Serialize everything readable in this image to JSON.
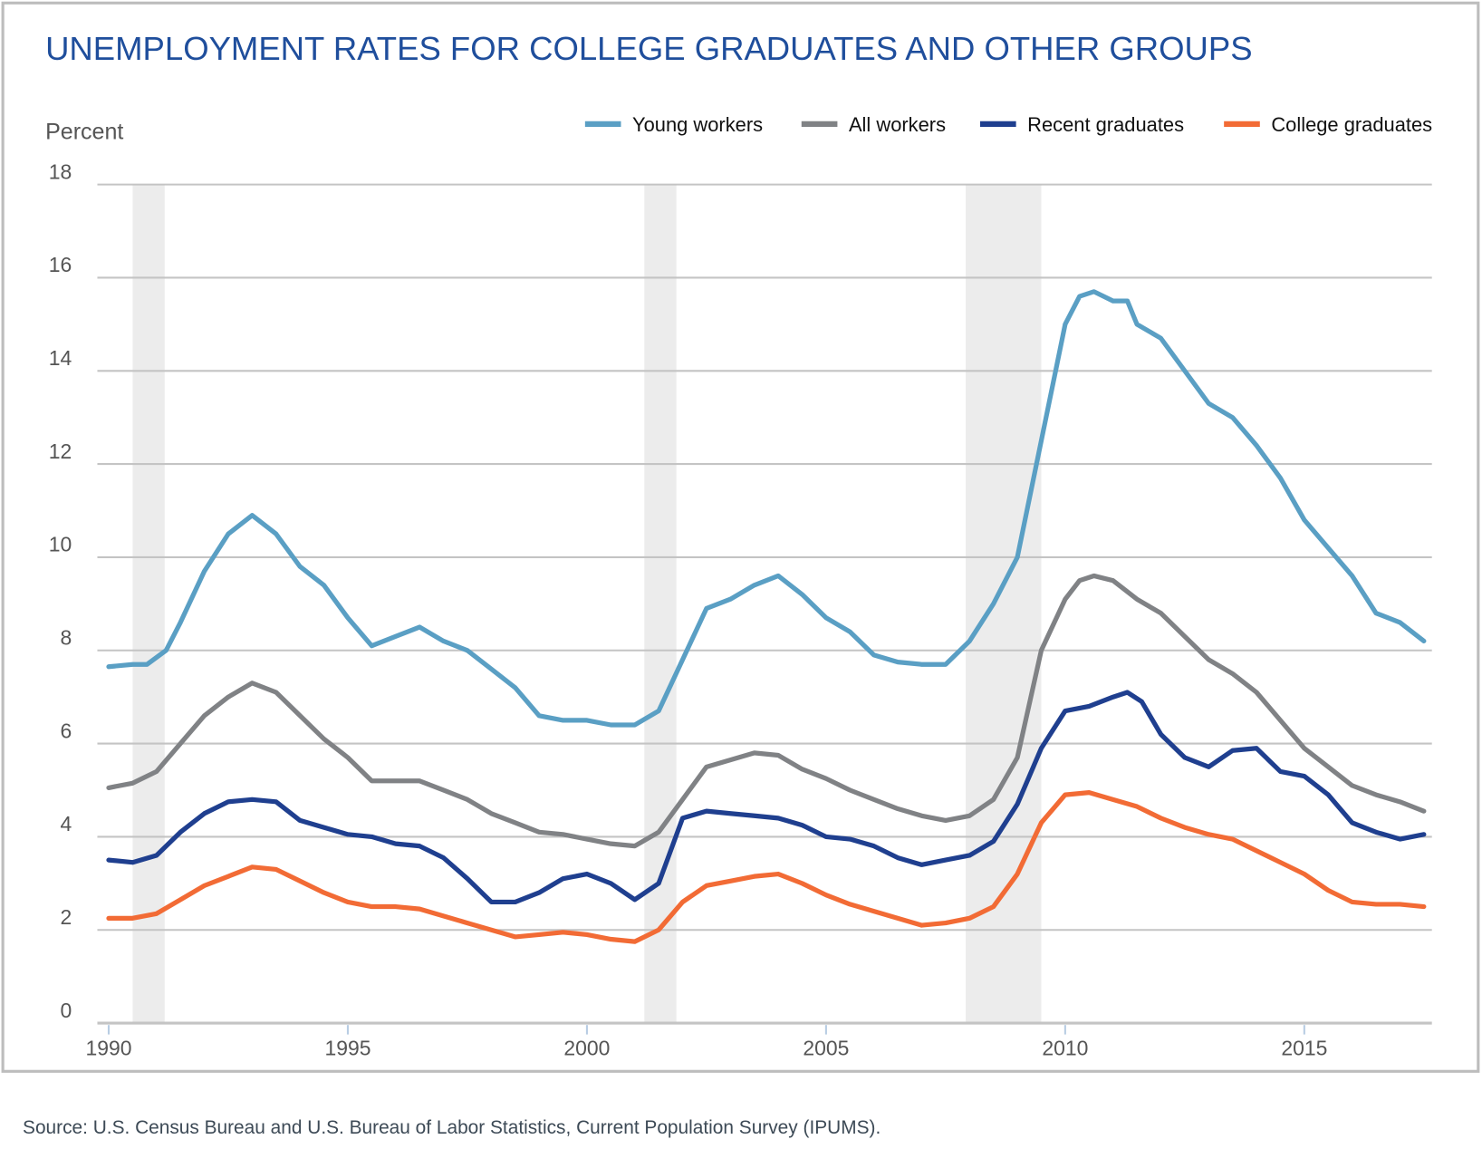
{
  "chart_data": {
    "type": "line",
    "title": "UNEMPLOYMENT RATES FOR COLLEGE GRADUATES AND OTHER GROUPS",
    "ylabel": "Percent",
    "xlabel": "",
    "ylim": [
      0,
      18
    ],
    "xlim": [
      1990,
      2017.5
    ],
    "yticks": [
      "0",
      "2",
      "4",
      "6",
      "8",
      "10",
      "12",
      "14",
      "16",
      "18"
    ],
    "xticks": [
      "1990",
      "1995",
      "2000",
      "2005",
      "2010",
      "2015"
    ],
    "grid": true,
    "legend_position": "top-right",
    "recessions": [
      [
        1990.5,
        1991.17
      ],
      [
        2001.2,
        2001.87
      ],
      [
        2007.92,
        2009.5
      ]
    ],
    "series": [
      {
        "name": "Young workers",
        "color": "#5a9fc4",
        "x": [
          1990,
          1990.5,
          1990.8,
          1991.2,
          1991.5,
          1992,
          1992.5,
          1993,
          1993.5,
          1994,
          1994.5,
          1995,
          1995.5,
          1996,
          1996.5,
          1997,
          1997.5,
          1998,
          1998.5,
          1999,
          1999.5,
          2000,
          2000.5,
          2001,
          2001.5,
          2002,
          2002.5,
          2003,
          2003.5,
          2004,
          2004.5,
          2005,
          2005.5,
          2006,
          2006.5,
          2007,
          2007.5,
          2008,
          2008.5,
          2009,
          2009.5,
          2009.8,
          2010,
          2010.3,
          2010.6,
          2011,
          2011.3,
          2011.5,
          2012,
          2012.5,
          2013,
          2013.5,
          2014,
          2014.5,
          2015,
          2015.5,
          2016,
          2016.5,
          2017,
          2017.5
        ],
        "values": [
          7.65,
          7.7,
          7.7,
          8.0,
          8.6,
          9.7,
          10.5,
          10.9,
          10.5,
          9.8,
          9.4,
          8.7,
          8.1,
          8.3,
          8.5,
          8.2,
          8.0,
          7.6,
          7.2,
          6.6,
          6.5,
          6.5,
          6.4,
          6.4,
          6.7,
          7.8,
          8.9,
          9.1,
          9.4,
          9.6,
          9.2,
          8.7,
          8.4,
          7.9,
          7.75,
          7.7,
          7.7,
          8.2,
          9.0,
          10.0,
          12.5,
          14.0,
          15.0,
          15.6,
          15.7,
          15.5,
          15.5,
          15.0,
          14.7,
          14.0,
          13.3,
          13.0,
          12.4,
          11.7,
          10.8,
          10.2,
          9.6,
          8.8,
          8.6,
          8.2
        ]
      },
      {
        "name": "All workers",
        "color": "#808285",
        "x": [
          1990,
          1990.5,
          1991,
          1991.5,
          1992,
          1992.5,
          1993,
          1993.5,
          1994,
          1994.5,
          1995,
          1995.5,
          1996,
          1996.5,
          1997,
          1997.5,
          1998,
          1998.5,
          1999,
          1999.5,
          2000,
          2000.5,
          2001,
          2001.5,
          2002,
          2002.5,
          2003,
          2003.5,
          2004,
          2004.5,
          2005,
          2005.5,
          2006,
          2006.5,
          2007,
          2007.5,
          2008,
          2008.5,
          2009,
          2009.5,
          2010,
          2010.3,
          2010.6,
          2011,
          2011.5,
          2012,
          2012.5,
          2013,
          2013.5,
          2014,
          2014.5,
          2015,
          2015.5,
          2016,
          2016.5,
          2017,
          2017.5
        ],
        "values": [
          5.05,
          5.15,
          5.4,
          6.0,
          6.6,
          7.0,
          7.3,
          7.1,
          6.6,
          6.1,
          5.7,
          5.2,
          5.2,
          5.2,
          5.0,
          4.8,
          4.5,
          4.3,
          4.1,
          4.05,
          3.95,
          3.85,
          3.8,
          4.1,
          4.8,
          5.5,
          5.65,
          5.8,
          5.75,
          5.45,
          5.25,
          5.0,
          4.8,
          4.6,
          4.45,
          4.35,
          4.45,
          4.8,
          5.7,
          8.0,
          9.1,
          9.5,
          9.6,
          9.5,
          9.1,
          8.8,
          8.3,
          7.8,
          7.5,
          7.1,
          6.5,
          5.9,
          5.5,
          5.1,
          4.9,
          4.75,
          4.55
        ]
      },
      {
        "name": "Recent graduates",
        "color": "#1f3f8f",
        "x": [
          1990,
          1990.5,
          1991,
          1991.5,
          1992,
          1992.5,
          1993,
          1993.5,
          1994,
          1994.5,
          1995,
          1995.5,
          1996,
          1996.5,
          1997,
          1997.5,
          1998,
          1998.5,
          1999,
          1999.5,
          2000,
          2000.5,
          2001,
          2001.5,
          2002,
          2002.5,
          2003,
          2003.5,
          2004,
          2004.5,
          2005,
          2005.5,
          2006,
          2006.5,
          2007,
          2007.5,
          2008,
          2008.5,
          2009,
          2009.5,
          2010,
          2010.5,
          2011,
          2011.3,
          2011.6,
          2012,
          2012.5,
          2013,
          2013.5,
          2014,
          2014.5,
          2015,
          2015.5,
          2016,
          2016.5,
          2017,
          2017.5
        ],
        "values": [
          3.5,
          3.45,
          3.6,
          4.1,
          4.5,
          4.75,
          4.8,
          4.75,
          4.35,
          4.2,
          4.05,
          4.0,
          3.85,
          3.8,
          3.55,
          3.1,
          2.6,
          2.6,
          2.8,
          3.1,
          3.2,
          3.0,
          2.65,
          3.0,
          4.4,
          4.55,
          4.5,
          4.45,
          4.4,
          4.25,
          4.0,
          3.95,
          3.8,
          3.55,
          3.4,
          3.5,
          3.6,
          3.9,
          4.7,
          5.9,
          6.7,
          6.8,
          7.0,
          7.1,
          6.9,
          6.2,
          5.7,
          5.5,
          5.85,
          5.9,
          5.4,
          5.3,
          4.9,
          4.3,
          4.1,
          3.95,
          4.05
        ]
      },
      {
        "name": "College graduates",
        "color": "#f26b35",
        "x": [
          1990,
          1990.5,
          1991,
          1991.5,
          1992,
          1992.5,
          1993,
          1993.5,
          1994,
          1994.5,
          1995,
          1995.5,
          1996,
          1996.5,
          1997,
          1997.5,
          1998,
          1998.5,
          1999,
          1999.5,
          2000,
          2000.5,
          2001,
          2001.5,
          2002,
          2002.5,
          2003,
          2003.5,
          2004,
          2004.5,
          2005,
          2005.5,
          2006,
          2006.5,
          2007,
          2007.5,
          2008,
          2008.5,
          2009,
          2009.5,
          2010,
          2010.5,
          2011,
          2011.5,
          2012,
          2012.5,
          2013,
          2013.5,
          2014,
          2014.5,
          2015,
          2015.5,
          2016,
          2016.5,
          2017,
          2017.5
        ],
        "values": [
          2.25,
          2.25,
          2.35,
          2.65,
          2.95,
          3.15,
          3.35,
          3.3,
          3.05,
          2.8,
          2.6,
          2.5,
          2.5,
          2.45,
          2.3,
          2.15,
          2.0,
          1.85,
          1.9,
          1.95,
          1.9,
          1.8,
          1.75,
          2.0,
          2.6,
          2.95,
          3.05,
          3.15,
          3.2,
          3.0,
          2.75,
          2.55,
          2.4,
          2.25,
          2.1,
          2.15,
          2.25,
          2.5,
          3.2,
          4.3,
          4.9,
          4.95,
          4.8,
          4.65,
          4.4,
          4.2,
          4.05,
          3.95,
          3.7,
          3.45,
          3.2,
          2.85,
          2.6,
          2.55,
          2.55,
          2.5
        ]
      }
    ],
    "source": "Source: U.S. Census Bureau and U.S. Bureau of Labor Statistics, Current Population Survey (IPUMS)."
  }
}
